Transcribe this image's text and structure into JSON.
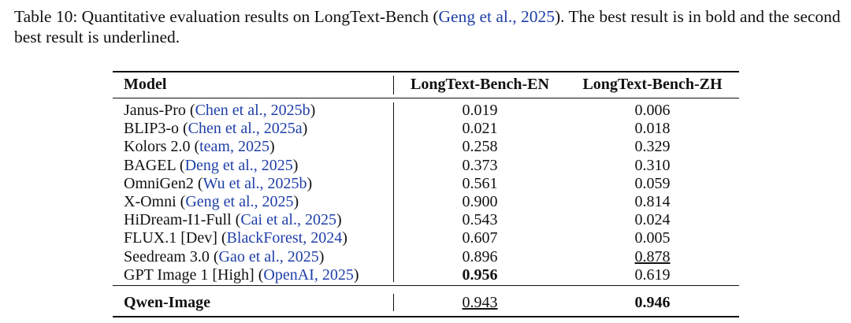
{
  "caption": {
    "prefix": "Table 10: Quantitative evaluation results on LongText-Bench (",
    "citation": "Geng et al., 2025",
    "suffix": "). The best result is in bold and the second best result is underlined."
  },
  "table": {
    "columns": [
      "Model",
      "LongText-Bench-EN",
      "LongText-Bench-ZH"
    ],
    "rows": [
      {
        "model": "Janus-Pro",
        "citation": "Chen et al., 2025b",
        "values": [
          {
            "text": "0.019"
          },
          {
            "text": "0.006"
          }
        ]
      },
      {
        "model": "BLIP3-o",
        "citation": "Chen et al., 2025a",
        "values": [
          {
            "text": "0.021"
          },
          {
            "text": "0.018"
          }
        ]
      },
      {
        "model": "Kolors 2.0",
        "citation": "team, 2025",
        "values": [
          {
            "text": "0.258"
          },
          {
            "text": "0.329"
          }
        ]
      },
      {
        "model": "BAGEL",
        "citation": "Deng et al., 2025",
        "values": [
          {
            "text": "0.373"
          },
          {
            "text": "0.310"
          }
        ]
      },
      {
        "model": "OmniGen2",
        "citation": "Wu et al., 2025b",
        "values": [
          {
            "text": "0.561"
          },
          {
            "text": "0.059"
          }
        ]
      },
      {
        "model": "X-Omni",
        "citation": "Geng et al., 2025",
        "values": [
          {
            "text": "0.900"
          },
          {
            "text": "0.814"
          }
        ]
      },
      {
        "model": "HiDream-I1-Full",
        "citation": "Cai et al., 2025",
        "values": [
          {
            "text": "0.543"
          },
          {
            "text": "0.024"
          }
        ]
      },
      {
        "model": "FLUX.1 [Dev]",
        "citation": "BlackForest, 2024",
        "values": [
          {
            "text": "0.607"
          },
          {
            "text": "0.005"
          }
        ]
      },
      {
        "model": "Seedream 3.0",
        "citation": "Gao et al., 2025",
        "values": [
          {
            "text": "0.896"
          },
          {
            "text": "0.878",
            "style": "underline"
          }
        ]
      },
      {
        "model": "GPT Image 1 [High]",
        "citation": "OpenAI, 2025",
        "values": [
          {
            "text": "0.956",
            "style": "bold"
          },
          {
            "text": "0.619"
          }
        ]
      }
    ],
    "ours": {
      "model": "Qwen-Image",
      "values": [
        {
          "text": "0.943",
          "style": "underline"
        },
        {
          "text": "0.946",
          "style": "bold"
        }
      ]
    }
  }
}
